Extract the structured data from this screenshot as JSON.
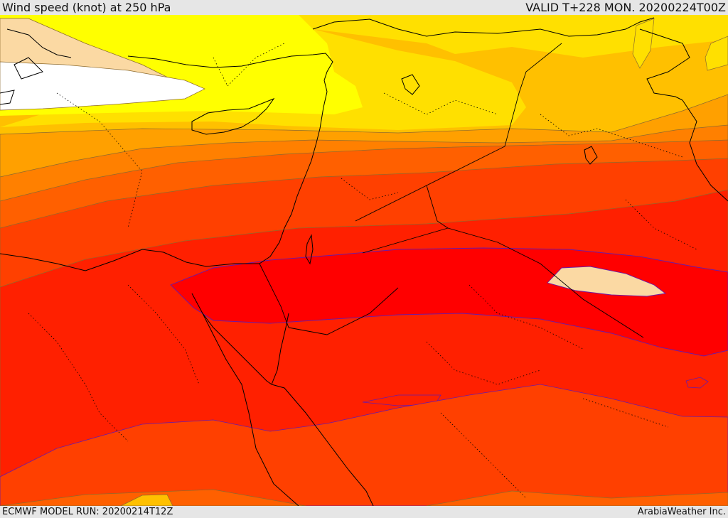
{
  "header": {
    "title": "Wind speed (knot) at 250 hPa",
    "valid": "VALID T+228 MON. 20200224T00Z"
  },
  "footer": {
    "model_run": "ECMWF MODEL RUN: 20200214T12Z",
    "provider": "ArabiaWeather Inc."
  },
  "colors": {
    "white": "#ffffff",
    "peach": "#fbd9a3",
    "yellow": "#ffff00",
    "gold": "#ffe000",
    "amber": "#ffc000",
    "orange_light": "#ffa000",
    "orange": "#ff8000",
    "orange_dark": "#ff6000",
    "red_orange": "#ff4000",
    "red": "#ff2000",
    "crimson": "#ff0000",
    "contour_line": "#8c6a2e",
    "jet_outline": "#6a1aa8",
    "coastline": "#000000"
  }
}
